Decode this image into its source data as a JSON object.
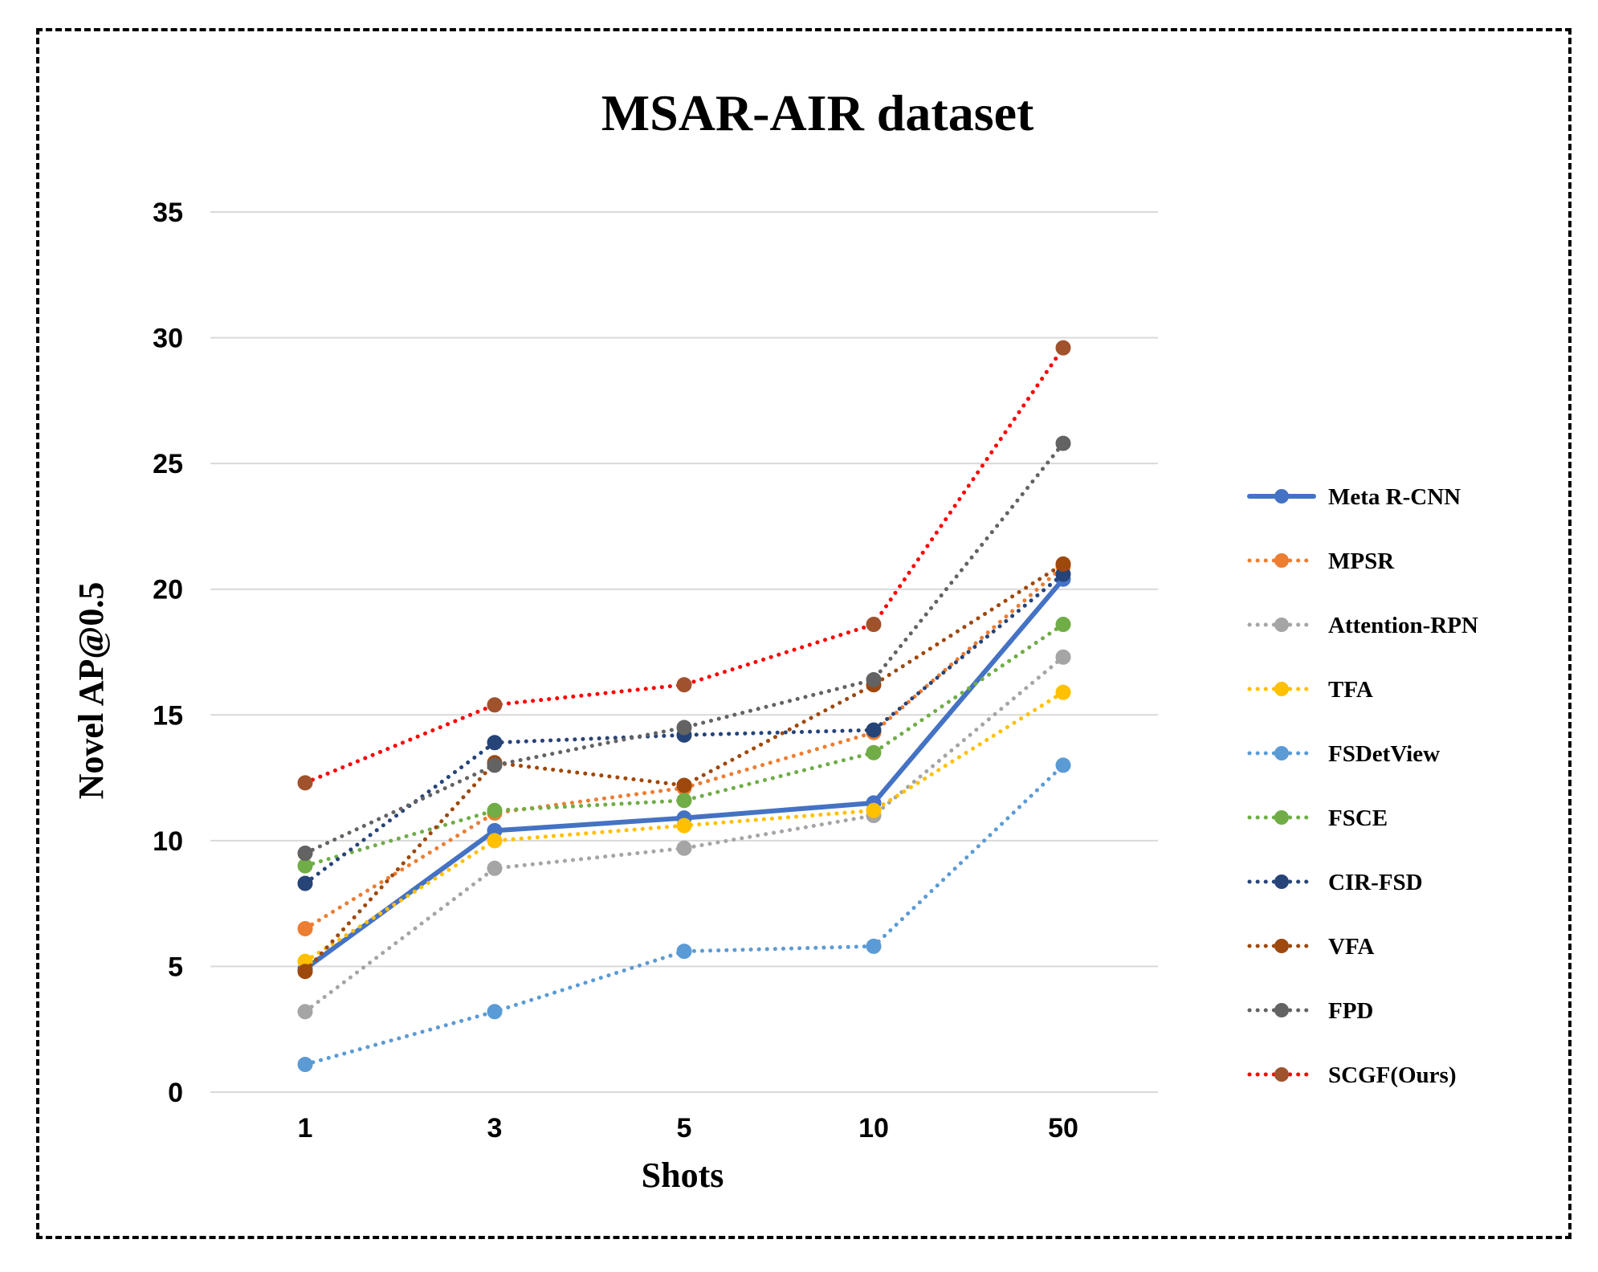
{
  "chart_data": {
    "type": "line",
    "title": "MSAR-AIR dataset",
    "xlabel": "Shots",
    "ylabel": "Novel AP@0.5",
    "categories": [
      "1",
      "3",
      "5",
      "10",
      "50"
    ],
    "ylim": [
      0,
      35
    ],
    "yticks": [
      "0",
      "5",
      "10",
      "15",
      "20",
      "25",
      "30",
      "35"
    ],
    "grid": true,
    "legend_position": "right",
    "series": [
      {
        "name": "Meta R-CNN",
        "values": [
          4.9,
          10.4,
          10.9,
          11.5,
          20.4
        ],
        "color": "#4472c4",
        "marker_color": "#4472c4",
        "style": "solid"
      },
      {
        "name": "MPSR",
        "values": [
          6.5,
          11.1,
          12.1,
          14.3,
          20.9
        ],
        "color": "#ed7d31",
        "marker_color": "#ed7d31",
        "style": "dotted"
      },
      {
        "name": "Attention-RPN",
        "values": [
          3.2,
          8.9,
          9.7,
          11.0,
          17.3
        ],
        "color": "#a5a5a5",
        "marker_color": "#a5a5a5",
        "style": "dotted"
      },
      {
        "name": "TFA",
        "values": [
          5.2,
          10.0,
          10.6,
          11.2,
          15.9
        ],
        "color": "#ffc000",
        "marker_color": "#ffc000",
        "style": "dotted"
      },
      {
        "name": "FSDetView",
        "values": [
          1.1,
          3.2,
          5.6,
          5.8,
          13.0
        ],
        "color": "#5b9bd5",
        "marker_color": "#5b9bd5",
        "style": "dotted"
      },
      {
        "name": "FSCE",
        "values": [
          9.0,
          11.2,
          11.6,
          13.5,
          18.6
        ],
        "color": "#70ad47",
        "marker_color": "#70ad47",
        "style": "dotted"
      },
      {
        "name": "CIR-FSD",
        "values": [
          8.3,
          13.9,
          14.2,
          14.4,
          20.6
        ],
        "color": "#264478",
        "marker_color": "#264478",
        "style": "dotted"
      },
      {
        "name": "VFA",
        "values": [
          4.8,
          13.1,
          12.2,
          16.2,
          21.0
        ],
        "color": "#9e480e",
        "marker_color": "#9e480e",
        "style": "dotted"
      },
      {
        "name": "FPD",
        "values": [
          9.5,
          13.0,
          14.5,
          16.4,
          25.8
        ],
        "color": "#636363",
        "marker_color": "#636363",
        "style": "dotted"
      },
      {
        "name": "SCGF(Ours)",
        "values": [
          12.3,
          15.4,
          16.2,
          18.6,
          29.6
        ],
        "color": "#ff0000",
        "marker_color": "#a0522d",
        "style": "dotted"
      }
    ]
  }
}
